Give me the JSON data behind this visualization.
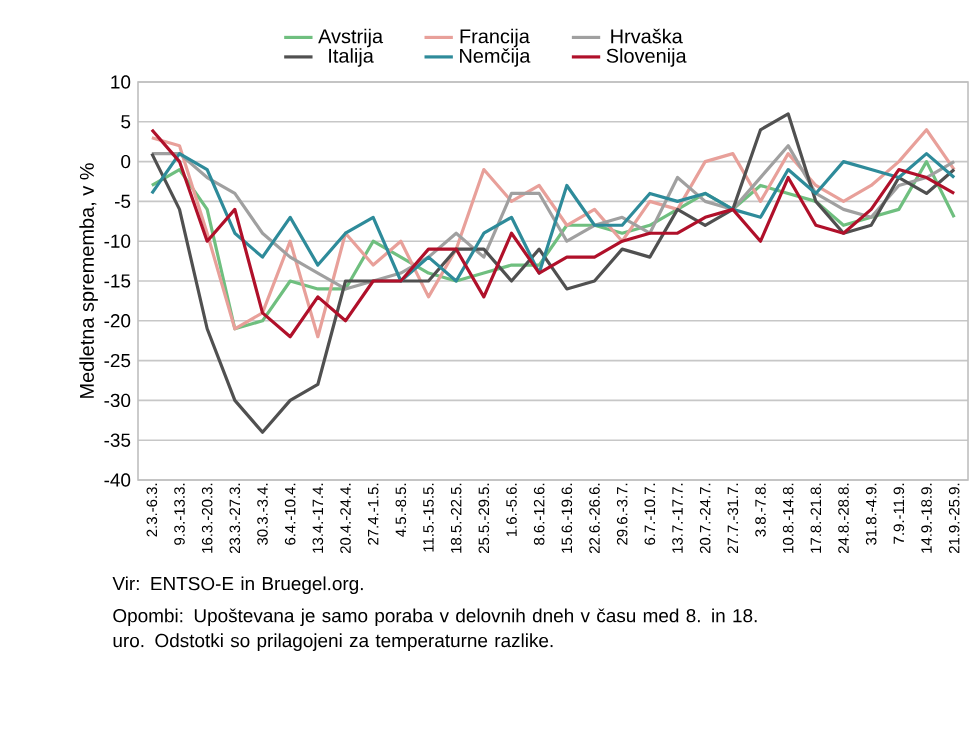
{
  "chart_data": {
    "type": "line",
    "categories": [
      "2.3.-6.3.",
      "9.3.-13.3.",
      "16.3.-20.3.",
      "23.3.-27.3.",
      "30.3.-3.4.",
      "6.4.-10.4.",
      "13.4.-17.4.",
      "20.4.-24.4.",
      "27.4.-1.5.",
      "4.5.-8.5.",
      "11.5.-15.5.",
      "18.5.-22.5.",
      "25.5.-29.5.",
      "1.6.-5.6.",
      "8.6.-12.6.",
      "15.6.-19.6.",
      "22.6.-26.6.",
      "29.6.-3.7.",
      "6.7.-10.7.",
      "13.7.-17.7.",
      "20.7.-24.7.",
      "27.7.-31.7.",
      "3.8.-7.8.",
      "10.8.-14.8.",
      "17.8.-21.8.",
      "24.8.-28.8.",
      "31.8.-4.9.",
      "7.9.-11.9.",
      "14.9.-18.9.",
      "21.9.-25.9."
    ],
    "series": [
      {
        "name": "Avstrija",
        "color": "#6fbf7f",
        "values": [
          -3,
          -1,
          -6,
          -21,
          -20,
          -15,
          -16,
          -16,
          -10,
          -12,
          -14,
          -15,
          -14,
          -13,
          -13,
          -8,
          -8,
          -9,
          -8,
          -6,
          -4,
          -6,
          -3,
          -4,
          -5,
          -8,
          -7,
          -6,
          0,
          -7
        ]
      },
      {
        "name": "Francija",
        "color": "#e8a09a",
        "values": [
          3,
          2,
          -9,
          -21,
          -19,
          -10,
          -22,
          -9,
          -13,
          -10,
          -17,
          -11,
          -1,
          -5,
          -3,
          -8,
          -6,
          -10,
          -5,
          -6,
          0,
          1,
          -5,
          1,
          -3,
          -5,
          -3,
          0,
          4,
          -1
        ]
      },
      {
        "name": "Hrvaška",
        "color": "#a0a0a0",
        "values": [
          1,
          1,
          -2,
          -4,
          -9,
          -12,
          -14,
          -16,
          -15,
          -14,
          -12,
          -9,
          -12,
          -4,
          -4,
          -10,
          -8,
          -7,
          -9,
          -2,
          -5,
          -6,
          -2,
          2,
          -4,
          -6,
          -7,
          -3,
          -2,
          0
        ]
      },
      {
        "name": "Italija",
        "color": "#505050",
        "values": [
          1,
          -6,
          -21,
          -30,
          -34,
          -30,
          -28,
          -15,
          -15,
          -15,
          -15,
          -11,
          -11,
          -15,
          -11,
          -16,
          -15,
          -11,
          -12,
          -6,
          -8,
          -6,
          4,
          6,
          -5,
          -9,
          -8,
          -2,
          -4,
          -1
        ]
      },
      {
        "name": "Nemčija",
        "color": "#2e8b9a",
        "values": [
          -4,
          1,
          -1,
          -9,
          -12,
          -7,
          -13,
          -9,
          -7,
          -15,
          -12,
          -15,
          -9,
          -7,
          -14,
          -3,
          -8,
          -8,
          -4,
          -5,
          -4,
          -6,
          -7,
          -1,
          -4,
          0,
          -1,
          -2,
          1,
          -2
        ]
      },
      {
        "name": "Slovenija",
        "color": "#b0102a",
        "values": [
          4,
          0,
          -10,
          -6,
          -19,
          -22,
          -17,
          -20,
          -15,
          -15,
          -11,
          -11,
          -17,
          -9,
          -14,
          -12,
          -12,
          -10,
          -9,
          -9,
          -7,
          -6,
          -10,
          -2,
          -8,
          -9,
          -6,
          -1,
          -2,
          -4
        ]
      }
    ],
    "ylabel": "Medletna sprememba, v %",
    "ylim": [
      -40,
      10
    ],
    "yticks": [
      -40,
      -35,
      -30,
      -25,
      -20,
      -15,
      -10,
      -5,
      0,
      5,
      10
    ],
    "grid": "y",
    "legend": "top",
    "annotations": [
      "Vir: ENTSO-E in Bruegel.org.",
      "Opombi: Upoštevana je samo poraba v delovnih dneh v času med 8. in 18. uro. Odstotki so prilagojeni za temperaturne razlike."
    ]
  }
}
